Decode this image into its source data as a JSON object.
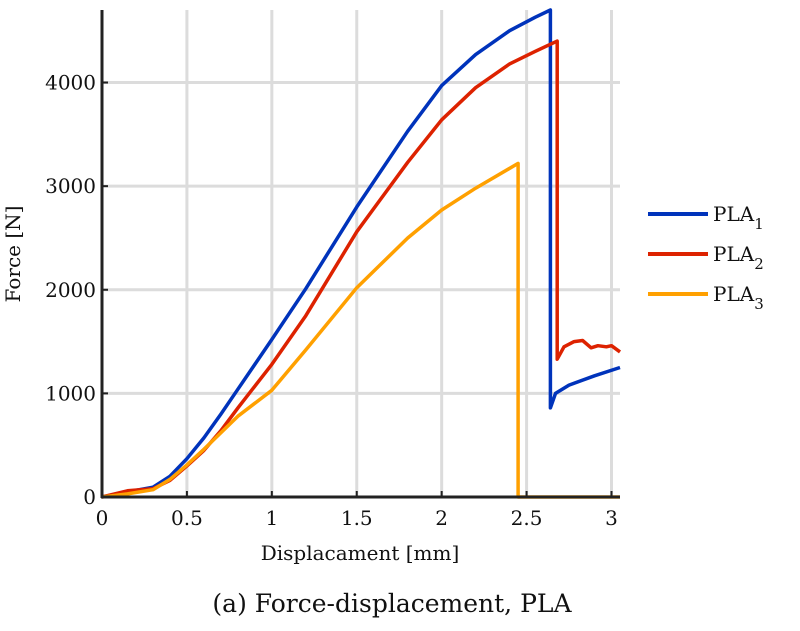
{
  "chart_data": {
    "type": "line",
    "title": "",
    "caption": "(a) Force-displacement, PLA",
    "xlabel": "Displacament [mm]",
    "ylabel": "Force [N]",
    "xlim": [
      0,
      3.05
    ],
    "ylim": [
      0,
      4700
    ],
    "xticks": [
      0,
      0.5,
      1,
      1.5,
      2,
      2.5,
      3
    ],
    "xtick_labels": [
      "0",
      "0.5",
      "1",
      "1.5",
      "2",
      "2.5",
      "3"
    ],
    "yticks": [
      0,
      1000,
      2000,
      3000,
      4000
    ],
    "ytick_labels": [
      "0",
      "1000",
      "2000",
      "3000",
      "4000"
    ],
    "grid": true,
    "legend_position": "right",
    "series": [
      {
        "name": "PLA",
        "subscript": "1",
        "color": "#0033bb",
        "x": [
          0,
          0.15,
          0.3,
          0.4,
          0.5,
          0.6,
          0.7,
          0.8,
          1.0,
          1.2,
          1.5,
          1.8,
          2.0,
          2.2,
          2.4,
          2.55,
          2.64,
          2.64,
          2.67,
          2.75,
          2.9,
          3.05
        ],
        "y": [
          0,
          50,
          95,
          200,
          370,
          570,
          800,
          1040,
          1520,
          2010,
          2800,
          3530,
          3970,
          4270,
          4500,
          4630,
          4700,
          860,
          1000,
          1080,
          1170,
          1250
        ]
      },
      {
        "name": "PLA",
        "subscript": "2",
        "color": "#dd2200",
        "x": [
          0,
          0.15,
          0.3,
          0.4,
          0.5,
          0.6,
          0.7,
          0.8,
          1.0,
          1.2,
          1.5,
          1.8,
          2.0,
          2.2,
          2.4,
          2.55,
          2.68,
          2.68,
          2.72,
          2.78,
          2.83,
          2.88,
          2.92,
          2.97,
          3.0,
          3.05
        ],
        "y": [
          0,
          60,
          80,
          160,
          300,
          450,
          640,
          860,
          1280,
          1750,
          2560,
          3230,
          3640,
          3950,
          4180,
          4300,
          4400,
          1330,
          1450,
          1500,
          1510,
          1440,
          1460,
          1450,
          1460,
          1400
        ]
      },
      {
        "name": "PLA",
        "subscript": "3",
        "color": "#ffa000",
        "x": [
          0,
          0.15,
          0.3,
          0.4,
          0.5,
          0.6,
          0.7,
          0.8,
          1.0,
          1.2,
          1.5,
          1.8,
          2.0,
          2.2,
          2.45,
          2.45,
          3.05
        ],
        "y": [
          0,
          30,
          70,
          170,
          310,
          460,
          620,
          780,
          1030,
          1420,
          2020,
          2500,
          2770,
          2980,
          3220,
          0,
          0
        ]
      }
    ]
  }
}
